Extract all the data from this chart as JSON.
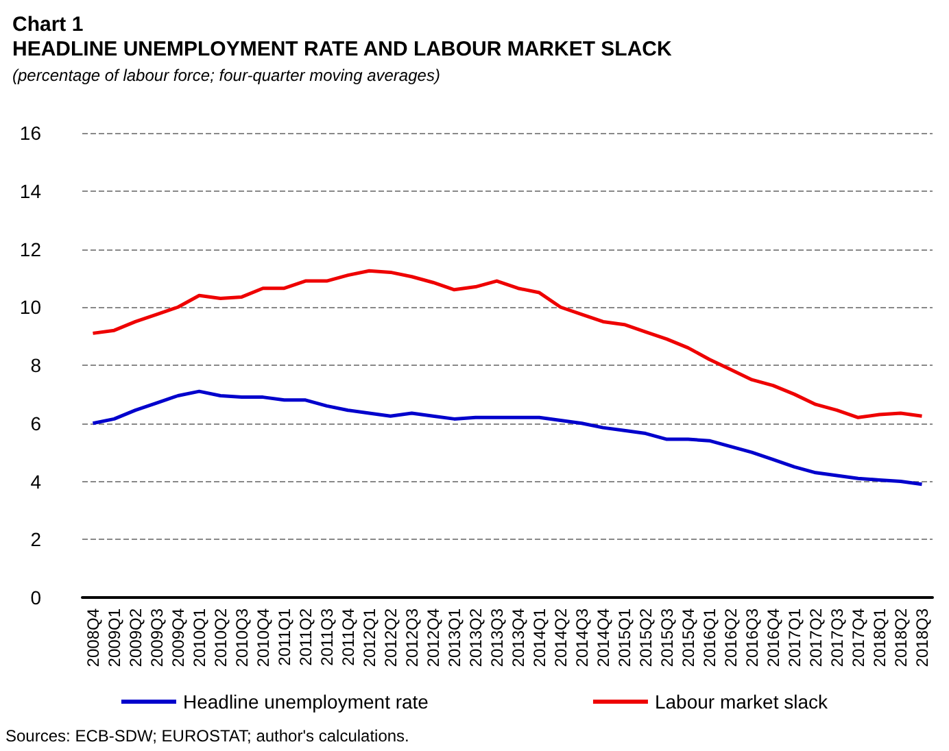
{
  "chart_data": {
    "type": "line",
    "title": "Chart 1\nHEADLINE UNEMPLOYMENT RATE AND LABOUR MARKET SLACK",
    "subtitle": "(percentage of labour force; four-quarter moving averages)",
    "categories": [
      "2008Q4",
      "2009Q1",
      "2009Q2",
      "2009Q3",
      "2009Q4",
      "2010Q1",
      "2010Q2",
      "2010Q3",
      "2010Q4",
      "2011Q1",
      "2011Q2",
      "2011Q3",
      "2011Q4",
      "2012Q1",
      "2012Q2",
      "2012Q3",
      "2012Q4",
      "2013Q1",
      "2013Q2",
      "2013Q3",
      "2013Q4",
      "2014Q1",
      "2014Q2",
      "2014Q3",
      "2014Q4",
      "2015Q1",
      "2015Q2",
      "2015Q3",
      "2015Q4",
      "2016Q1",
      "2016Q2",
      "2016Q3",
      "2016Q4",
      "2017Q1",
      "2017Q2",
      "2017Q3",
      "2017Q4",
      "2018Q1",
      "2018Q2",
      "2018Q3"
    ],
    "series": [
      {
        "name": "Headline unemployment rate",
        "color": "#0000cc",
        "values": [
          6.0,
          6.15,
          6.45,
          6.7,
          6.95,
          7.1,
          6.95,
          6.9,
          6.9,
          6.8,
          6.8,
          6.6,
          6.45,
          6.35,
          6.25,
          6.35,
          6.25,
          6.15,
          6.2,
          6.2,
          6.2,
          6.2,
          6.1,
          6.0,
          5.85,
          5.75,
          5.65,
          5.45,
          5.45,
          5.4,
          5.2,
          5.0,
          4.75,
          4.5,
          4.3,
          4.2,
          4.1,
          4.05,
          4.0,
          3.9
        ]
      },
      {
        "name": "Labour market slack",
        "color": "#ee0000",
        "values": [
          9.1,
          9.2,
          9.5,
          9.75,
          10.0,
          10.4,
          10.3,
          10.35,
          10.65,
          10.65,
          10.9,
          10.9,
          11.1,
          11.25,
          11.2,
          11.05,
          10.85,
          10.6,
          10.7,
          10.9,
          10.65,
          10.5,
          10.0,
          9.75,
          9.5,
          9.4,
          9.15,
          8.9,
          8.6,
          8.2,
          7.85,
          7.5,
          7.3,
          7.0,
          6.65,
          6.45,
          6.2,
          6.3,
          6.35,
          6.25
        ]
      }
    ],
    "ylim": [
      0,
      16
    ],
    "yticks": [
      0,
      2,
      4,
      6,
      8,
      10,
      12,
      14,
      16
    ],
    "grid": "y",
    "line_style": "solid",
    "marker": "none",
    "legend": "bottom",
    "annotations": [
      "Sources: ECB-SDW; EUROSTAT; author's calculations."
    ]
  }
}
